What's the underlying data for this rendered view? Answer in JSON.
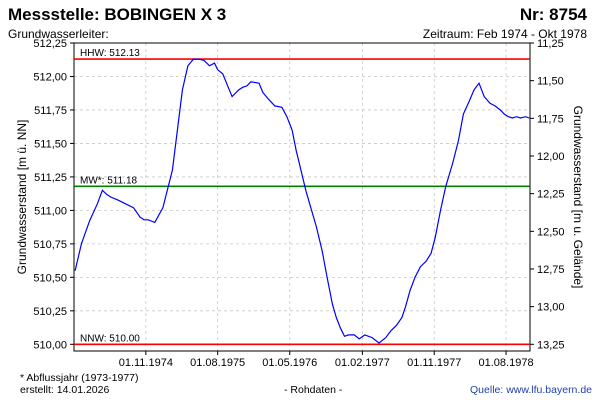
{
  "header": {
    "title": "Messstelle: BOBINGEN X 3",
    "number": "Nr: 8754",
    "aquifer": "Grundwasserleiter:",
    "period": "Zeitraum: Feb 1974 - Okt 1978"
  },
  "footer": {
    "note": "* Abflussjahr (1973-1977)",
    "created": "erstellt:  14.01.2026",
    "raw": "- Rohdaten -",
    "source": "Quelle: www.lfu.bayern.de"
  },
  "colors": {
    "series": "#0000ff",
    "hhw": "#ff0000",
    "mw": "#008000",
    "nnw": "#ff0000",
    "grid": "#c8c8c8"
  },
  "chart_data": {
    "type": "line",
    "ylabel_left": "Grundwasserstand [m ü. NN]",
    "ylabel_right": "Grundwasserstand [m u. Gelände]",
    "ylim": [
      509.95,
      512.25
    ],
    "grid": true,
    "xlim": [
      "1974-02-01",
      "1978-10-31"
    ],
    "yticks_left": [
      "512,25",
      "512,00",
      "511,75",
      "511,50",
      "511,25",
      "511,00",
      "510,75",
      "510,50",
      "510,25",
      "510,00"
    ],
    "yticks_right": [
      "11,25",
      "11,50",
      "11,75",
      "12,00",
      "12,25",
      "12,50",
      "12,75",
      "13,00",
      "13,25"
    ],
    "xticks": [
      {
        "date": "1974-11-01",
        "label": "01.11.1974"
      },
      {
        "date": "1975-08-01",
        "label": "01.08.1975"
      },
      {
        "date": "1976-05-01",
        "label": "01.05.1976"
      },
      {
        "date": "1977-02-01",
        "label": "01.02.1977"
      },
      {
        "date": "1977-11-01",
        "label": "01.11.1977"
      },
      {
        "date": "1978-08-01",
        "label": "01.08.1978"
      }
    ],
    "reference_lines": [
      {
        "label": "HHW: 512.13",
        "value": 512.13,
        "key": "hhw"
      },
      {
        "label": "MW*: 511.18",
        "value": 511.18,
        "key": "mw"
      },
      {
        "label": "NNW: 510.00",
        "value": 510.0,
        "key": "nnw"
      }
    ],
    "series": [
      {
        "x": [
          "1974-02-05",
          "1974-03-01",
          "1974-04-01",
          "1974-05-01",
          "1974-05-20",
          "1974-06-05",
          "1974-06-20",
          "1974-07-15",
          "1974-08-15",
          "1974-09-15",
          "1974-10-10",
          "1974-10-25",
          "1974-11-10",
          "1974-12-05",
          "1975-01-05",
          "1975-01-15",
          "1975-02-10",
          "1975-03-01",
          "1975-03-20",
          "1975-04-10",
          "1975-05-01",
          "1975-05-20",
          "1975-06-10",
          "1975-07-01",
          "1975-07-20",
          "1975-08-01",
          "1975-08-20",
          "1975-09-10",
          "1975-09-25",
          "1975-10-10",
          "1975-10-20",
          "1975-11-05",
          "1975-11-20",
          "1975-12-05",
          "1976-01-05",
          "1976-01-20",
          "1976-02-10",
          "1976-03-05",
          "1976-04-01",
          "1976-04-20",
          "1976-05-10",
          "1976-05-25",
          "1976-06-10",
          "1976-07-01",
          "1976-07-20",
          "1976-08-10",
          "1976-09-01",
          "1976-09-20",
          "1976-10-10",
          "1976-10-25",
          "1976-11-10",
          "1976-11-25",
          "1976-12-10",
          "1977-01-01",
          "1977-01-20",
          "1977-02-10",
          "1977-03-10",
          "1977-04-05",
          "1977-05-01",
          "1977-05-20",
          "1977-06-10",
          "1977-07-01",
          "1977-07-15",
          "1977-08-01",
          "1977-08-20",
          "1977-09-10",
          "1977-10-01",
          "1977-10-20",
          "1977-11-05",
          "1977-11-25",
          "1977-12-15",
          "1978-01-10",
          "1978-02-01",
          "1978-02-20",
          "1978-03-15",
          "1978-04-01",
          "1978-04-20",
          "1978-05-10",
          "1978-06-01",
          "1978-06-20",
          "1978-07-10",
          "1978-07-25",
          "1978-08-10",
          "1978-08-25",
          "1978-09-10",
          "1978-09-25",
          "1978-10-15",
          "1978-10-28"
        ],
        "y": [
          510.55,
          510.75,
          510.92,
          511.05,
          511.15,
          511.12,
          511.1,
          511.08,
          511.05,
          511.02,
          510.95,
          510.93,
          510.93,
          510.91,
          511.02,
          511.1,
          511.3,
          511.6,
          511.9,
          512.08,
          512.13,
          512.13,
          512.12,
          512.08,
          512.1,
          512.05,
          512.02,
          511.92,
          511.85,
          511.88,
          511.9,
          511.92,
          511.93,
          511.96,
          511.95,
          511.88,
          511.83,
          511.78,
          511.77,
          511.7,
          511.6,
          511.45,
          511.32,
          511.15,
          511.02,
          510.88,
          510.7,
          510.5,
          510.3,
          510.2,
          510.12,
          510.06,
          510.07,
          510.07,
          510.04,
          510.07,
          510.05,
          510.01,
          510.05,
          510.1,
          510.14,
          510.2,
          510.28,
          510.4,
          510.5,
          510.58,
          510.62,
          510.68,
          510.8,
          511.0,
          511.18,
          511.35,
          511.52,
          511.72,
          511.82,
          511.9,
          511.95,
          511.85,
          511.8,
          511.78,
          511.75,
          511.72,
          511.7,
          511.69,
          511.7,
          511.69,
          511.7,
          511.69
        ]
      }
    ]
  }
}
